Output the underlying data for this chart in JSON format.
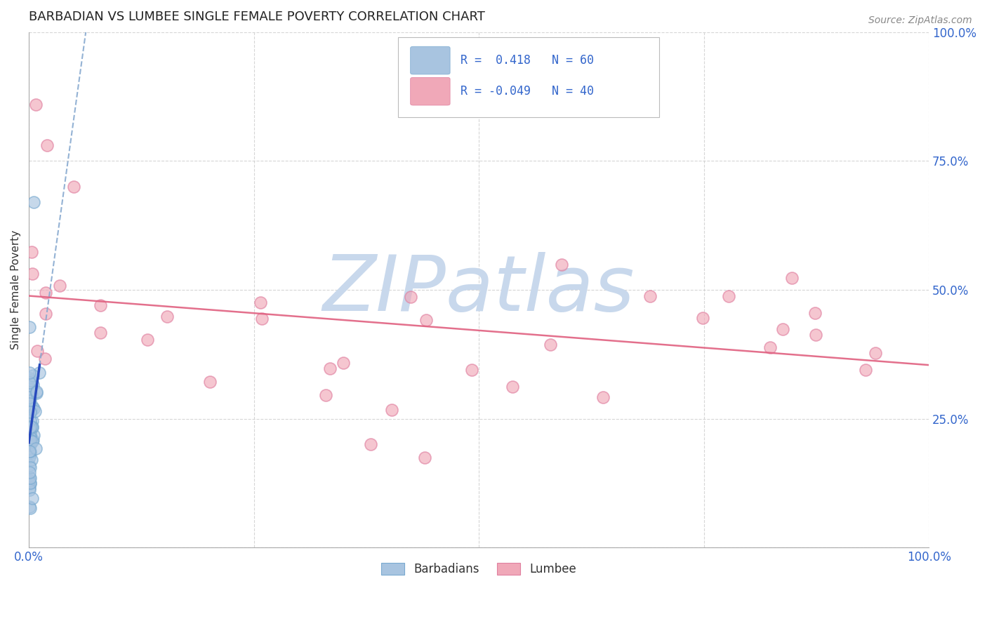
{
  "title": "BARBADIAN VS LUMBEE SINGLE FEMALE POVERTY CORRELATION CHART",
  "source_text": "Source: ZipAtlas.com",
  "ylabel": "Single Female Poverty",
  "watermark": "ZIPatlas",
  "xlim": [
    0.0,
    1.0
  ],
  "ylim": [
    0.0,
    1.0
  ],
  "xticks": [
    0.0,
    0.25,
    0.5,
    0.75,
    1.0
  ],
  "yticks": [
    0.0,
    0.25,
    0.5,
    0.75,
    1.0
  ],
  "xticklabels": [
    "0.0%",
    "",
    "",
    "",
    "100.0%"
  ],
  "yticklabels_right": [
    "",
    "25.0%",
    "50.0%",
    "75.0%",
    "100.0%"
  ],
  "grid_color": "#cccccc",
  "background_color": "#ffffff",
  "barbadian_color": "#a8c4e0",
  "barbadian_edge_color": "#7aaad0",
  "lumbee_color": "#f0a8b8",
  "lumbee_edge_color": "#e080a0",
  "barbadian_R": 0.418,
  "barbadian_N": 60,
  "lumbee_R": -0.049,
  "lumbee_N": 40,
  "title_color": "#222222",
  "title_fontsize": 13,
  "label_color": "#3366cc",
  "tick_color": "#3366cc",
  "source_color": "#888888",
  "watermark_color": "#c8d8ec",
  "watermark_fontsize": 80,
  "lumbee_line_color": "#e06080",
  "barb_dashed_color": "#88aad0",
  "barb_solid_color": "#2244bb"
}
